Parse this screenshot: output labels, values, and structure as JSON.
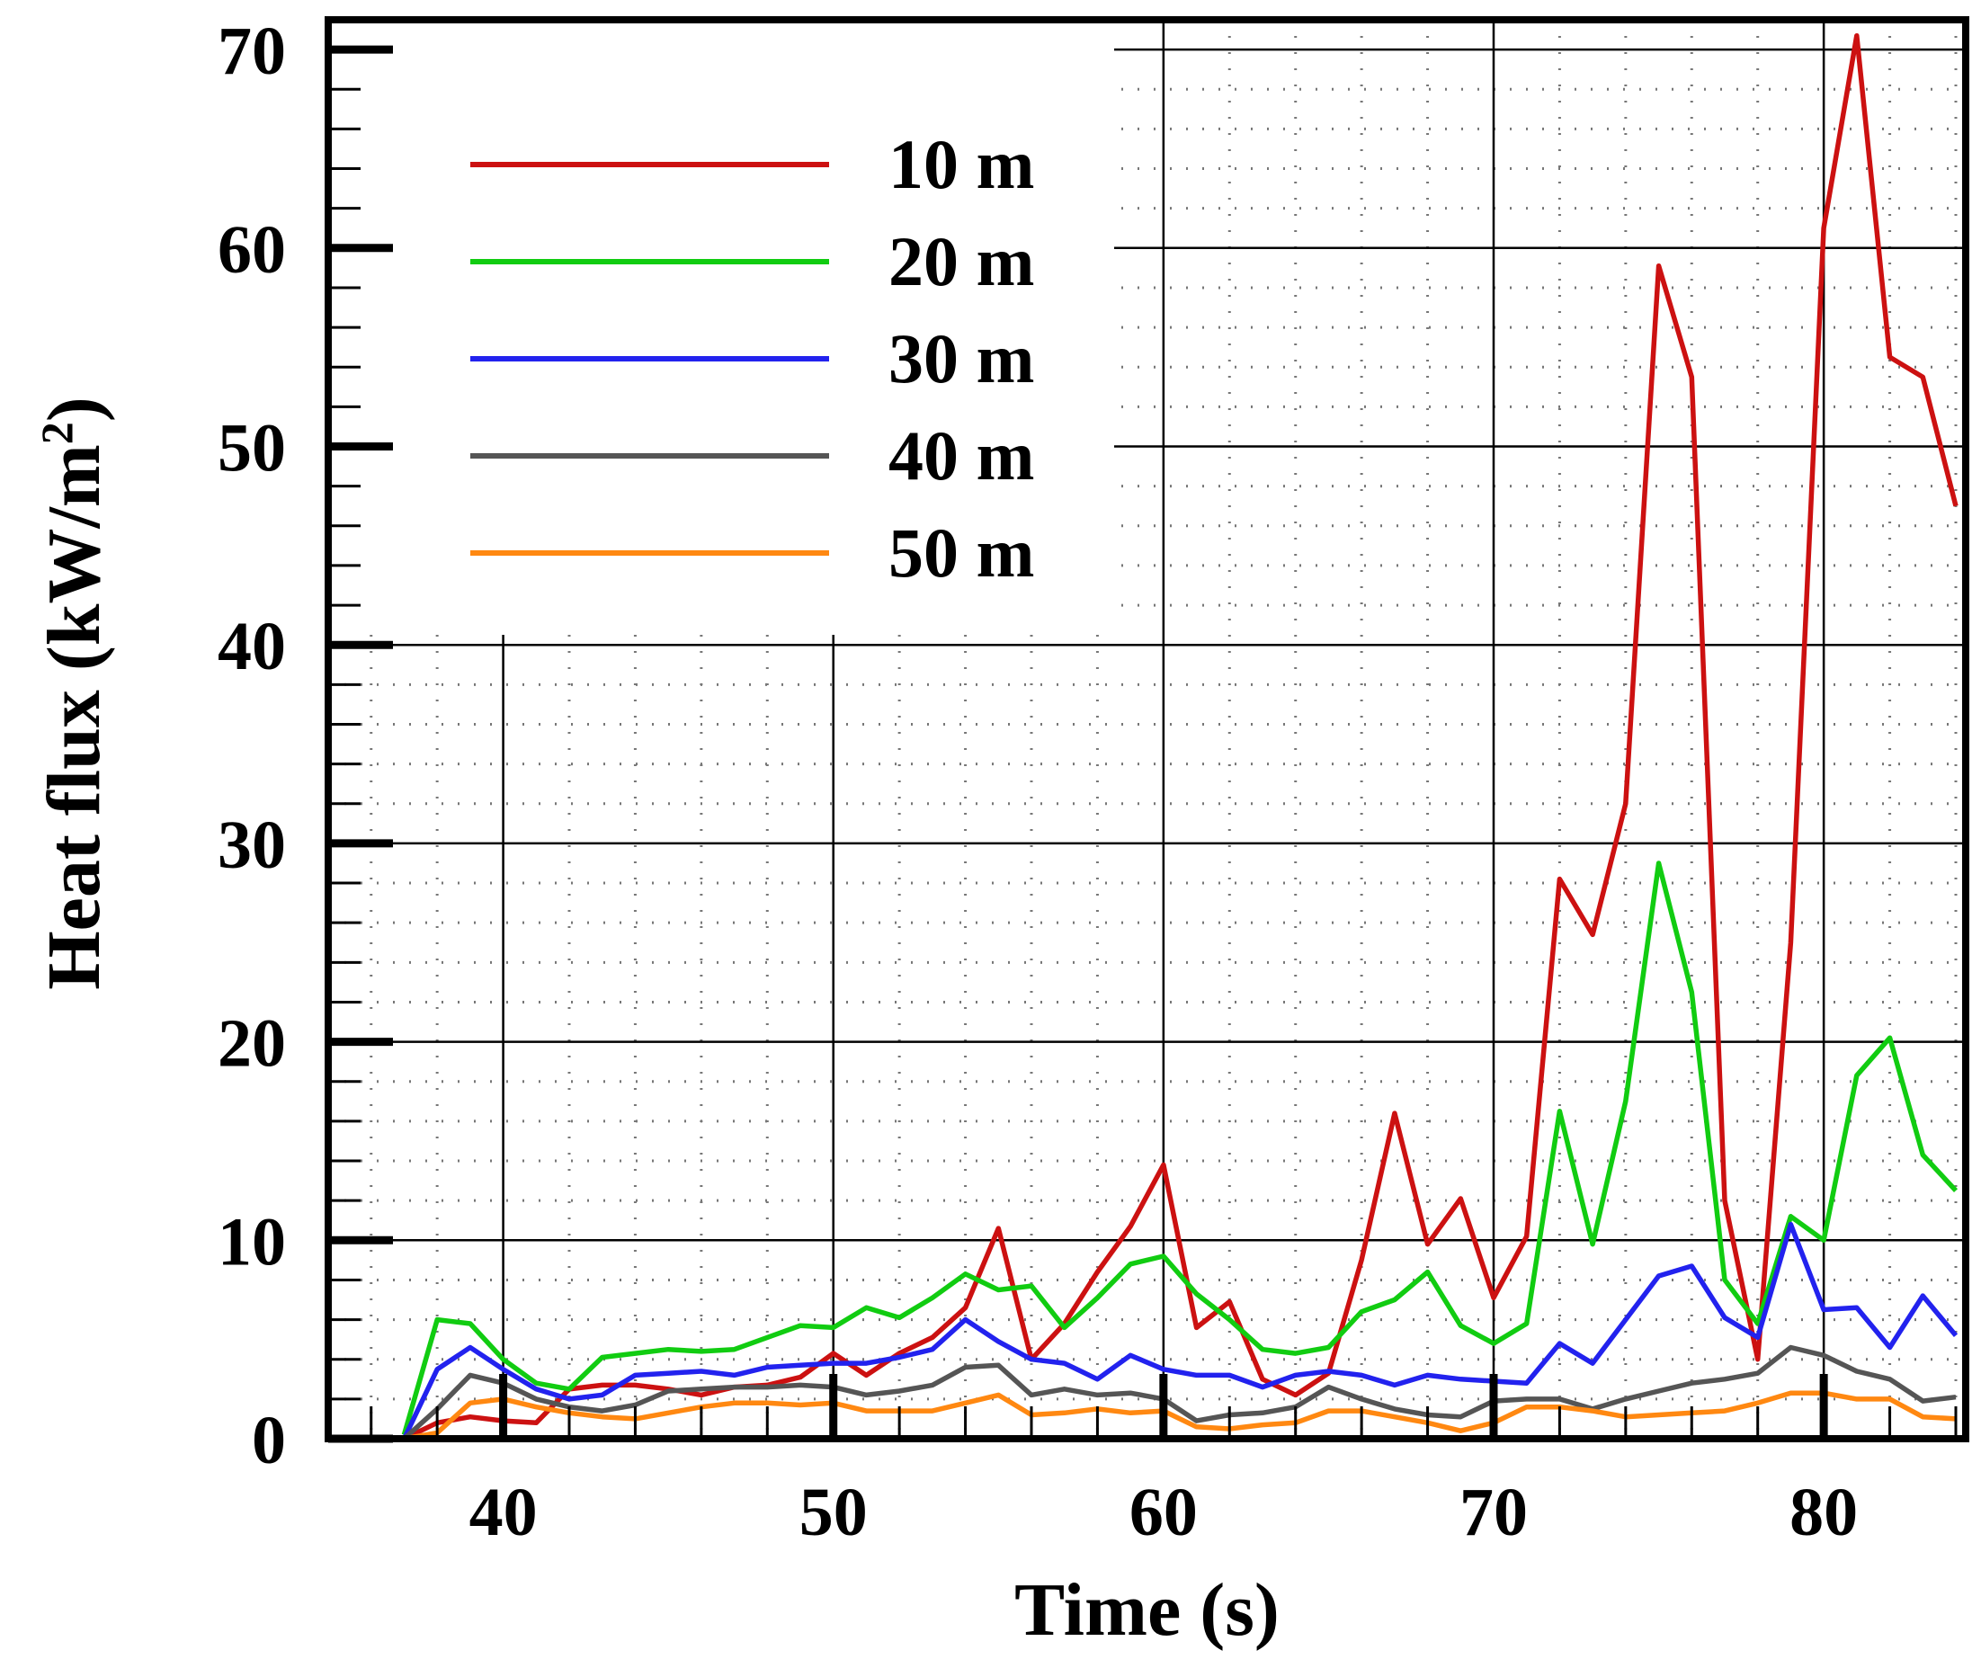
{
  "chart_data": {
    "type": "line",
    "title": "",
    "xlabel": "Time (s)",
    "ylabel_main": "Heat flux (kW/m",
    "ylabel_sup": "2",
    "ylabel_end": ")",
    "xlim": [
      34.7,
      84.3
    ],
    "ylim": [
      0,
      71.5
    ],
    "xticks": [
      40,
      50,
      60,
      70,
      80
    ],
    "yticks": [
      0,
      10,
      20,
      30,
      40,
      50,
      60,
      70
    ],
    "x": [
      37,
      38,
      39,
      40,
      41,
      42,
      43,
      44,
      45,
      46,
      47,
      48,
      49,
      50,
      51,
      52,
      53,
      54,
      55,
      56,
      57,
      58,
      59,
      60,
      61,
      62,
      63,
      64,
      65,
      66,
      67,
      68,
      69,
      70,
      71,
      72,
      73,
      74,
      75,
      76,
      77,
      78,
      79,
      80,
      81,
      82,
      83,
      84
    ],
    "series": [
      {
        "name": "10 m",
        "color": "#cc1111",
        "values": [
          0,
          0.8,
          1.1,
          0.9,
          0.8,
          2.5,
          2.7,
          2.7,
          2.5,
          2.2,
          2.6,
          2.7,
          3.1,
          4.3,
          3.2,
          4.3,
          5.1,
          6.6,
          10.6,
          4.0,
          5.8,
          8.4,
          10.7,
          13.8,
          5.6,
          6.9,
          3.0,
          2.2,
          3.3,
          9.0,
          16.4,
          9.8,
          12.1,
          7.1,
          10.2,
          28.2,
          25.4,
          32.0,
          59.1,
          53.5,
          12.0,
          4.0,
          25.0,
          61.0,
          70.7,
          54.5,
          53.5,
          47.0
        ]
      },
      {
        "name": "20 m",
        "color": "#11cc11",
        "values": [
          0.2,
          6.0,
          5.8,
          4.0,
          2.8,
          2.5,
          4.1,
          4.3,
          4.5,
          4.4,
          4.5,
          5.1,
          5.7,
          5.6,
          6.6,
          6.1,
          7.1,
          8.3,
          7.5,
          7.7,
          5.6,
          7.1,
          8.8,
          9.2,
          7.3,
          6.0,
          4.5,
          4.3,
          4.6,
          6.4,
          7.0,
          8.4,
          5.7,
          4.8,
          5.8,
          16.5,
          9.8,
          17.0,
          29.0,
          22.5,
          8.0,
          5.8,
          11.2,
          10.0,
          18.3,
          20.2,
          14.3,
          12.5
        ]
      },
      {
        "name": "30 m",
        "color": "#2222ee",
        "values": [
          0,
          3.5,
          4.6,
          3.5,
          2.5,
          2.0,
          2.2,
          3.2,
          3.3,
          3.4,
          3.2,
          3.6,
          3.7,
          3.8,
          3.8,
          4.1,
          4.5,
          6.0,
          4.9,
          4.0,
          3.8,
          3.0,
          4.2,
          3.5,
          3.2,
          3.2,
          2.6,
          3.2,
          3.4,
          3.2,
          2.7,
          3.2,
          3.0,
          2.9,
          2.8,
          4.8,
          3.8,
          6.0,
          8.2,
          8.7,
          6.1,
          5.1,
          10.8,
          6.5,
          6.6,
          4.6,
          7.2,
          5.2
        ]
      },
      {
        "name": "40 m",
        "color": "#555555",
        "values": [
          0,
          1.5,
          3.2,
          2.8,
          2.0,
          1.6,
          1.4,
          1.7,
          2.4,
          2.5,
          2.6,
          2.6,
          2.7,
          2.6,
          2.2,
          2.4,
          2.7,
          3.6,
          3.7,
          2.2,
          2.5,
          2.2,
          2.3,
          2.0,
          0.9,
          1.2,
          1.3,
          1.6,
          2.6,
          2.0,
          1.5,
          1.2,
          1.1,
          1.9,
          2.0,
          2.0,
          1.5,
          2.0,
          2.4,
          2.8,
          3.0,
          3.3,
          4.6,
          4.2,
          3.4,
          3.0,
          1.9,
          2.1
        ]
      },
      {
        "name": "50 m",
        "color": "#ff8811",
        "values": [
          0,
          0.3,
          1.8,
          2.0,
          1.6,
          1.3,
          1.1,
          1.0,
          1.3,
          1.6,
          1.8,
          1.8,
          1.7,
          1.8,
          1.4,
          1.4,
          1.4,
          1.8,
          2.2,
          1.2,
          1.3,
          1.5,
          1.3,
          1.4,
          0.6,
          0.5,
          0.7,
          0.8,
          1.4,
          1.4,
          1.1,
          0.8,
          0.4,
          0.8,
          1.6,
          1.6,
          1.4,
          1.1,
          1.2,
          1.3,
          1.4,
          1.8,
          2.3,
          2.3,
          2.0,
          2.0,
          1.1,
          1.0
        ]
      }
    ],
    "grid": true,
    "legend_position": "top-left"
  }
}
